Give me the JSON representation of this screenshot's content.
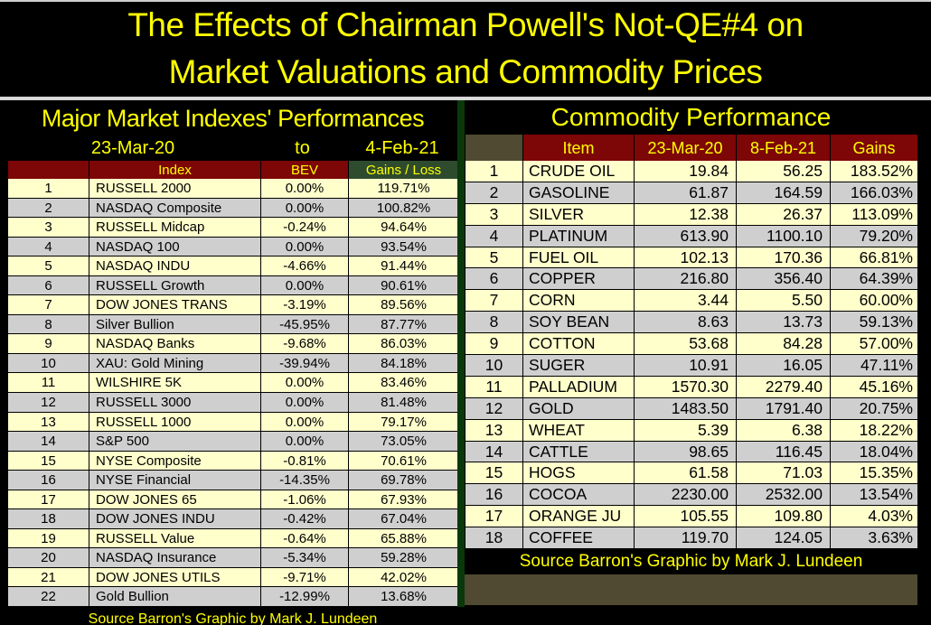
{
  "title": {
    "line1": "The Effects of Chairman Powell's Not-QE#4 on",
    "line2": "Market Valuations and Commodity Prices"
  },
  "colors": {
    "background": "#000000",
    "title_yellow": "#ffff00",
    "header_dark_red": "#7d0606",
    "header_dark_green": "#2e4b2e",
    "olive": "#4f4a31",
    "row_cream": "#ffffcc",
    "row_gray": "#cfcfcf",
    "panel_divider_green": "#0a380a",
    "rule_gray": "#d9d9d9"
  },
  "chart_data": [
    {
      "type": "table",
      "title": "Major Market Indexes' Performances",
      "date_from": "23-Mar-20",
      "date_word": "to",
      "date_to": "4-Feb-21",
      "columns": [
        "",
        "Index",
        "BEV",
        "Gains / Loss"
      ],
      "rows": [
        [
          1,
          "RUSSELL 2000",
          "0.00%",
          "119.71%"
        ],
        [
          2,
          "NASDAQ Composite",
          "0.00%",
          "100.82%"
        ],
        [
          3,
          "RUSSELL Midcap",
          "-0.24%",
          "94.64%"
        ],
        [
          4,
          "NASDAQ 100",
          "0.00%",
          "93.54%"
        ],
        [
          5,
          "NASDAQ INDU",
          "-4.66%",
          "91.44%"
        ],
        [
          6,
          "RUSSELL Growth",
          "0.00%",
          "90.61%"
        ],
        [
          7,
          "DOW JONES TRANS",
          "-3.19%",
          "89.56%"
        ],
        [
          8,
          "Silver Bullion",
          "-45.95%",
          "87.77%"
        ],
        [
          9,
          "NASDAQ Banks",
          "-9.68%",
          "86.03%"
        ],
        [
          10,
          "XAU: Gold Mining",
          "-39.94%",
          "84.18%"
        ],
        [
          11,
          "WILSHIRE 5K",
          "0.00%",
          "83.46%"
        ],
        [
          12,
          "RUSSELL 3000",
          "0.00%",
          "81.48%"
        ],
        [
          13,
          "RUSSELL 1000",
          "0.00%",
          "79.17%"
        ],
        [
          14,
          "S&P 500",
          "0.00%",
          "73.05%"
        ],
        [
          15,
          "NYSE Composite",
          "-0.81%",
          "70.61%"
        ],
        [
          16,
          "NYSE Financial",
          "-14.35%",
          "69.78%"
        ],
        [
          17,
          "DOW JONES 65",
          "-1.06%",
          "67.93%"
        ],
        [
          18,
          "DOW JONES INDU",
          "-0.42%",
          "67.04%"
        ],
        [
          19,
          "RUSSELL Value",
          "-0.64%",
          "65.88%"
        ],
        [
          20,
          "NASDAQ Insurance",
          "-5.34%",
          "59.28%"
        ],
        [
          21,
          "DOW JONES UTILS",
          "-9.71%",
          "42.02%"
        ],
        [
          22,
          "Gold Bullion",
          "-12.99%",
          "13.68%"
        ]
      ],
      "source": "Source Barron's   Graphic by Mark J. Lundeen"
    },
    {
      "type": "table",
      "title": "Commodity Performance",
      "columns": [
        "",
        "Item",
        "23-Mar-20",
        "8-Feb-21",
        "Gains"
      ],
      "rows": [
        [
          1,
          "CRUDE OIL",
          "19.84",
          "56.25",
          "183.52%"
        ],
        [
          2,
          "GASOLINE",
          "61.87",
          "164.59",
          "166.03%"
        ],
        [
          3,
          "SILVER",
          "12.38",
          "26.37",
          "113.09%"
        ],
        [
          4,
          "PLATINUM",
          "613.90",
          "1100.10",
          "79.20%"
        ],
        [
          5,
          "FUEL OIL",
          "102.13",
          "170.36",
          "66.81%"
        ],
        [
          6,
          "COPPER",
          "216.80",
          "356.40",
          "64.39%"
        ],
        [
          7,
          "CORN",
          "3.44",
          "5.50",
          "60.00%"
        ],
        [
          8,
          "SOY BEAN",
          "8.63",
          "13.73",
          "59.13%"
        ],
        [
          9,
          "COTTON",
          "53.68",
          "84.28",
          "57.00%"
        ],
        [
          10,
          "SUGER",
          "10.91",
          "16.05",
          "47.11%"
        ],
        [
          11,
          "PALLADIUM",
          "1570.30",
          "2279.40",
          "45.16%"
        ],
        [
          12,
          "GOLD",
          "1483.50",
          "1791.40",
          "20.75%"
        ],
        [
          13,
          "WHEAT",
          "5.39",
          "6.38",
          "18.22%"
        ],
        [
          14,
          "CATTLE",
          "98.65",
          "116.45",
          "18.04%"
        ],
        [
          15,
          "HOGS",
          "61.58",
          "71.03",
          "15.35%"
        ],
        [
          16,
          "COCOA",
          "2230.00",
          "2532.00",
          "13.54%"
        ],
        [
          17,
          "ORANGE JU",
          "105.55",
          "109.80",
          "4.03%"
        ],
        [
          18,
          "COFFEE",
          "119.70",
          "124.05",
          "3.63%"
        ]
      ],
      "source": "Source Barron's  Graphic by Mark J. Lundeen"
    }
  ]
}
